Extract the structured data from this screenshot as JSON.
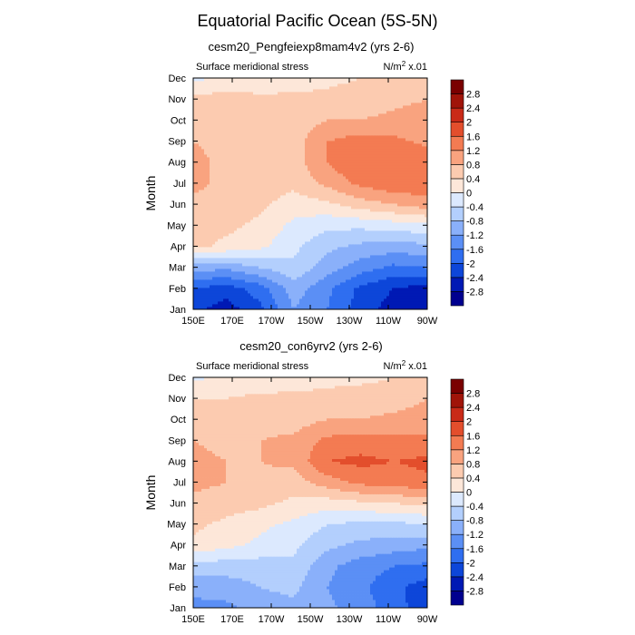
{
  "title": "Equatorial Pacific Ocean (5S-5N)",
  "chart_data": [
    {
      "type": "heatmap",
      "subtitle": "cesm20_Pengfeiexp8mam4v2 (yrs 2-6)",
      "left_label": "Surface meridional stress",
      "right_label_base": "N/m",
      "right_label_exp": "2",
      "right_label_suffix": " x.01",
      "ylabel": "Month",
      "x_ticks": [
        "150E",
        "170E",
        "170W",
        "150W",
        "130W",
        "110W",
        "90W"
      ],
      "y_ticks": [
        "Jan",
        "Feb",
        "Mar",
        "Apr",
        "May",
        "Jun",
        "Jul",
        "Aug",
        "Sep",
        "Oct",
        "Nov",
        "Dec"
      ],
      "x_range_deg_east": [
        150,
        270
      ],
      "colorbar_levels": [
        "-2.8",
        "-2.4",
        "-2",
        "-1.6",
        "-1.2",
        "-0.8",
        "-0.4",
        "0",
        "0.4",
        "0.8",
        "1.2",
        "1.6",
        "2",
        "2.4",
        "2.8"
      ],
      "colors": [
        "#00008f",
        "#0019b4",
        "#0d46d9",
        "#2f6ef0",
        "#5b8ff5",
        "#8ab0fa",
        "#b3cffd",
        "#dce9fe",
        "#fde7d9",
        "#fccbb0",
        "#f9a37f",
        "#f37b52",
        "#e34e2c",
        "#c92a18",
        "#a01409",
        "#7a0000"
      ],
      "grid": [
        [
          -2.3,
          -2.6,
          -2.1,
          -1.2,
          -1.6,
          -2.2,
          -2.6,
          -2.8
        ],
        [
          -2.0,
          -2.2,
          -1.8,
          -1.0,
          -1.5,
          -2.1,
          -2.4,
          -2.6
        ],
        [
          -1.0,
          -1.1,
          -0.8,
          -0.5,
          -1.0,
          -1.4,
          -1.7,
          -1.6
        ],
        [
          0.5,
          0.3,
          0.1,
          -0.3,
          -0.7,
          -0.9,
          -1.0,
          -0.9
        ],
        [
          0.6,
          0.5,
          0.3,
          -0.1,
          -0.3,
          -0.3,
          -0.2,
          -0.1
        ],
        [
          0.7,
          0.6,
          0.5,
          0.2,
          0.3,
          0.6,
          0.8,
          1.0
        ],
        [
          0.9,
          0.7,
          0.6,
          0.5,
          0.9,
          1.3,
          1.5,
          1.5
        ],
        [
          0.9,
          0.7,
          0.6,
          0.6,
          1.2,
          1.6,
          1.6,
          1.5
        ],
        [
          0.8,
          0.7,
          0.6,
          0.6,
          1.2,
          1.4,
          1.3,
          1.1
        ],
        [
          0.7,
          0.6,
          0.6,
          0.6,
          0.8,
          0.8,
          0.9,
          1.0
        ],
        [
          0.5,
          0.6,
          0.5,
          0.5,
          0.5,
          0.6,
          0.7,
          0.8
        ],
        [
          -0.1,
          0.1,
          0.1,
          0.2,
          0.3,
          0.4,
          0.5,
          0.6
        ]
      ]
    },
    {
      "type": "heatmap",
      "subtitle": "cesm20_con6yrv2 (yrs 2-6)",
      "left_label": "Surface meridional stress",
      "right_label_base": "N/m",
      "right_label_exp": "2",
      "right_label_suffix": " x.01",
      "ylabel": "Month",
      "x_ticks": [
        "150E",
        "170E",
        "170W",
        "150W",
        "130W",
        "110W",
        "90W"
      ],
      "y_ticks": [
        "Jan",
        "Feb",
        "Mar",
        "Apr",
        "May",
        "Jun",
        "Jul",
        "Aug",
        "Sep",
        "Oct",
        "Nov",
        "Dec"
      ],
      "x_range_deg_east": [
        150,
        270
      ],
      "colorbar_levels": [
        "-2.8",
        "-2.4",
        "-2",
        "-1.6",
        "-1.2",
        "-0.8",
        "-0.4",
        "0",
        "0.4",
        "0.8",
        "1.2",
        "1.6",
        "2",
        "2.4",
        "2.8"
      ],
      "colors": [
        "#00008f",
        "#0019b4",
        "#0d46d9",
        "#2f6ef0",
        "#5b8ff5",
        "#8ab0fa",
        "#b3cffd",
        "#dce9fe",
        "#fde7d9",
        "#fccbb0",
        "#f9a37f",
        "#f37b52",
        "#e34e2c",
        "#c92a18",
        "#a01409",
        "#7a0000"
      ],
      "grid": [
        [
          -1.3,
          -1.3,
          -1.0,
          -0.9,
          -1.1,
          -1.4,
          -1.8,
          -2.3
        ],
        [
          -1.1,
          -1.0,
          -0.8,
          -0.7,
          -1.2,
          -1.5,
          -1.9,
          -2.2
        ],
        [
          -0.6,
          -0.6,
          -0.6,
          -0.5,
          -1.1,
          -1.4,
          -1.6,
          -1.7
        ],
        [
          0.3,
          0.1,
          -0.1,
          -0.3,
          -0.7,
          -0.9,
          -1.0,
          -1.1
        ],
        [
          0.5,
          0.3,
          0.1,
          -0.1,
          -0.4,
          -0.5,
          -0.5,
          -0.4
        ],
        [
          0.7,
          0.6,
          0.5,
          0.3,
          0.2,
          0.3,
          0.4,
          0.5
        ],
        [
          0.9,
          0.8,
          0.7,
          0.6,
          1.0,
          1.3,
          1.4,
          1.5
        ],
        [
          0.9,
          0.8,
          0.8,
          0.9,
          1.6,
          1.7,
          1.6,
          1.7
        ],
        [
          0.8,
          0.7,
          0.8,
          0.9,
          1.3,
          1.4,
          1.3,
          1.3
        ],
        [
          0.6,
          0.6,
          0.6,
          0.6,
          0.8,
          0.8,
          0.9,
          1.0
        ],
        [
          0.4,
          0.4,
          0.5,
          0.5,
          0.5,
          0.6,
          0.6,
          0.8
        ],
        [
          -0.1,
          0.1,
          0.1,
          0.2,
          0.3,
          0.3,
          0.4,
          0.6
        ]
      ]
    }
  ]
}
